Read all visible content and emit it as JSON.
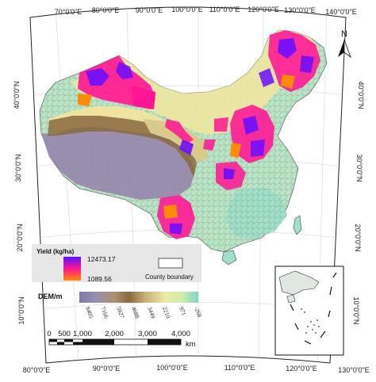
{
  "graticule": {
    "top_labels": [
      "70°0'0\"E",
      "80°0'0\"E",
      "90°0'0\"E",
      "100°0'0\"E",
      "110°0'0\"E",
      "120°0'0\"E",
      "130°0'0\"E",
      "140°0'0\"E"
    ],
    "bottom_labels": [
      "80°0'0\"E",
      "90°0'0\"E",
      "100°0'0\"E",
      "110°0'0\"E",
      "120°0'0\"E",
      "130°0'0\"E"
    ],
    "left_labels": [
      "40°0'0\"N",
      "30°0'0\"N",
      "20°0'0\"N",
      "10°0'0\"N"
    ],
    "right_labels": [
      "40°0'0\"N",
      "30°0'0\"N",
      "20°0'0\"N",
      "10°0'0\"N"
    ]
  },
  "north_arrow": {
    "label": "N"
  },
  "yield_legend": {
    "title": "Yield (kg/ha)",
    "max": "12473.17",
    "min": "1089.56",
    "colors": {
      "high": "#6a0dff",
      "mid": "#ff1493",
      "low": "#ff8c00"
    }
  },
  "county_legend": {
    "label": "County boundary"
  },
  "dem_legend": {
    "title": "DEM/m",
    "ticks": [
      "8405",
      "7166",
      "5927",
      "4688",
      "3449",
      "2210",
      "971",
      "-268"
    ],
    "colors": [
      "#7f78a8",
      "#9a8fb0",
      "#a98f6e",
      "#8a6a3e",
      "#c9b27a",
      "#efe7a6",
      "#cfeea9",
      "#7fd6c4"
    ]
  },
  "scale_bar": {
    "labels": [
      "0",
      "500",
      "1,000",
      "2,000",
      "3,000",
      "4,000"
    ],
    "unit": "km"
  }
}
